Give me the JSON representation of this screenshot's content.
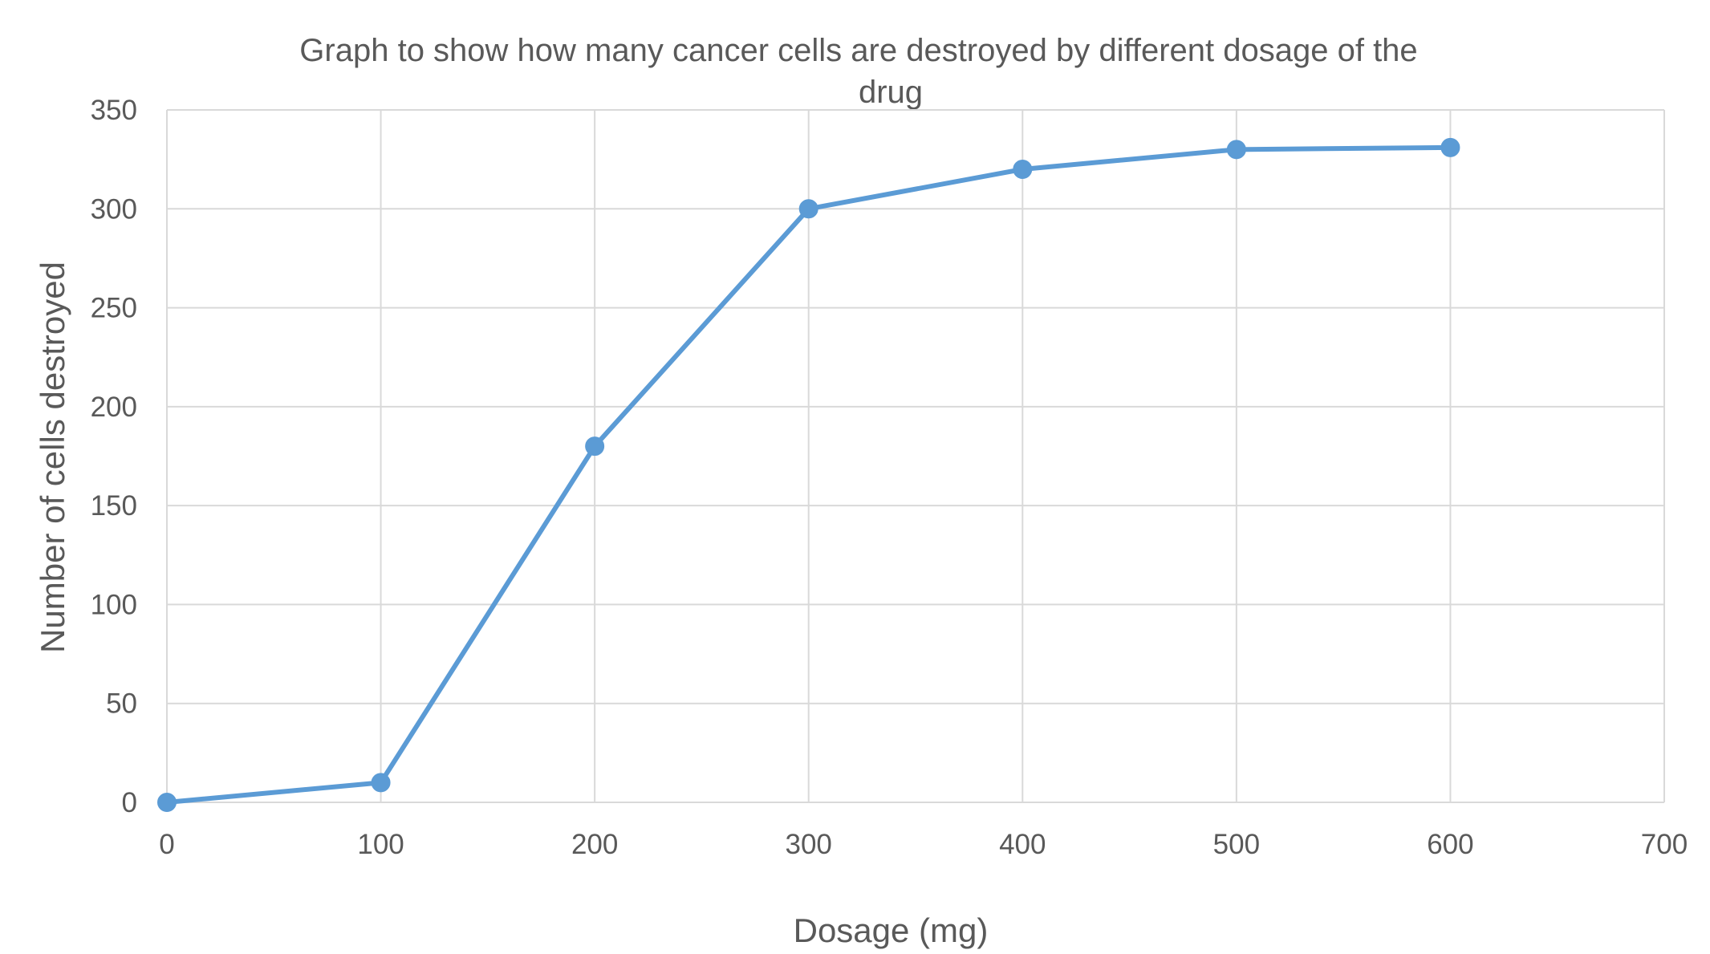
{
  "chart_data": {
    "type": "line",
    "title": "Graph to show how many cancer cells are destroyed by different dosage of the drug",
    "title_lines": [
      "Graph to show how many cancer cells are destroyed by different dosage of the",
      "drug"
    ],
    "xlabel": "Dosage (mg)",
    "ylabel": "Number of cells destroyed",
    "xlim": [
      0,
      700
    ],
    "ylim": [
      0,
      350
    ],
    "xticks": [
      0,
      100,
      200,
      300,
      400,
      500,
      600,
      700
    ],
    "yticks": [
      0,
      50,
      100,
      150,
      200,
      250,
      300,
      350
    ],
    "xtick_labels": [
      "0",
      "100",
      "200",
      "300",
      "400",
      "500",
      "600",
      "700"
    ],
    "ytick_labels": [
      "0",
      "50",
      "100",
      "150",
      "200",
      "250",
      "300",
      "350"
    ],
    "grid": true,
    "legend": false,
    "series": [
      {
        "color": "#5B9BD5",
        "marker": "circle",
        "points": [
          {
            "x": 0,
            "y": 0
          },
          {
            "x": 100,
            "y": 10
          },
          {
            "x": 200,
            "y": 180
          },
          {
            "x": 300,
            "y": 300
          },
          {
            "x": 400,
            "y": 320
          },
          {
            "x": 500,
            "y": 330
          },
          {
            "x": 600,
            "y": 331
          }
        ]
      }
    ],
    "colors": {
      "line": "#5B9BD5",
      "grid": "#D9D9D9",
      "text": "#595959",
      "background": "#FFFFFF"
    }
  }
}
